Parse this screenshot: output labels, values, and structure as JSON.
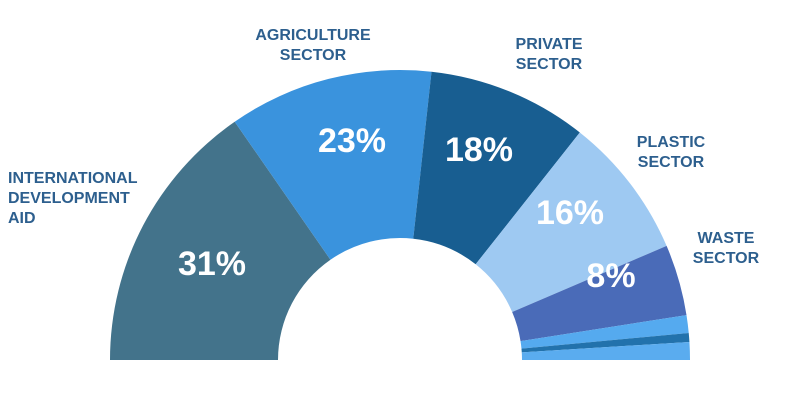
{
  "chart_data": {
    "type": "pie",
    "variant": "semicircle-donut",
    "slices": [
      {
        "label_lines": [
          "INTERNATIONAL",
          "DEVELOPMENT",
          "AID"
        ],
        "value": 31,
        "value_label": "31%",
        "color": "#43738b"
      },
      {
        "label_lines": [
          "AGRICULTURE",
          "SECTOR"
        ],
        "value": 23,
        "value_label": "23%",
        "color": "#3a93dd"
      },
      {
        "label_lines": [
          "PRIVATE",
          "SECTOR"
        ],
        "value": 18,
        "value_label": "18%",
        "color": "#185e91"
      },
      {
        "label_lines": [
          "PLASTIC",
          "SECTOR"
        ],
        "value": 16,
        "value_label": "16%",
        "color": "#9ec9f2"
      },
      {
        "label_lines": [
          "WASTE",
          "SECTOR"
        ],
        "value": 8,
        "value_label": "8%",
        "color": "#4a6bb8"
      },
      {
        "label_lines": [],
        "value": 2.0,
        "value_label": "",
        "color": "#55aaef"
      },
      {
        "label_lines": [],
        "value": 1.0,
        "value_label": "",
        "color": "#2272ac"
      },
      {
        "label_lines": [],
        "value": 2.0,
        "value_label": "",
        "color": "#5aacef"
      }
    ]
  },
  "colors": {
    "category_label": "#2d5f8e",
    "value_label": "#ffffff"
  }
}
